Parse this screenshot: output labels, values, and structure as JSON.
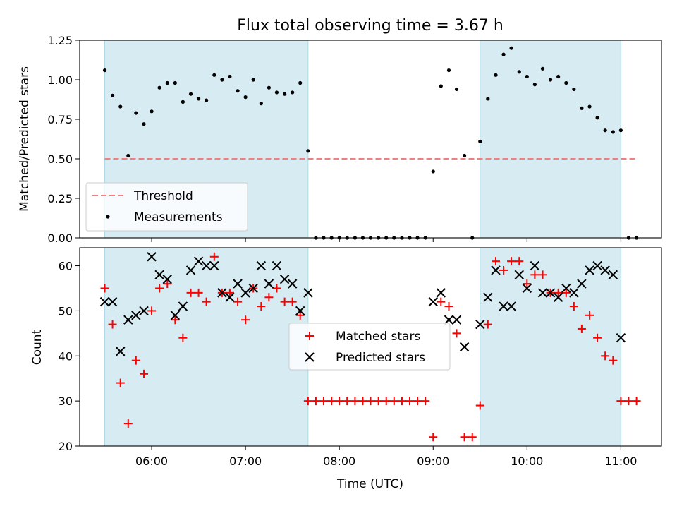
{
  "title": "Flux total observing time = 3.67 h",
  "chart_data": [
    {
      "type": "scatter",
      "panel": "top",
      "ylabel": "Matched/Predicted stars",
      "ylim": [
        0,
        1.25
      ],
      "yticks": [
        0.0,
        0.25,
        0.5,
        0.75,
        1.0,
        1.25
      ],
      "ytick_labels": [
        "0.00",
        "0.25",
        "0.50",
        "0.75",
        "1.00",
        "1.25"
      ],
      "xticks_hours": [
        6,
        7,
        8,
        9,
        10,
        11
      ],
      "shaded_spans_hours": [
        [
          5.5,
          7.667
        ],
        [
          9.5,
          11.0
        ]
      ],
      "shade_color": "#add8e6",
      "threshold": {
        "name": "Threshold",
        "value": 0.5,
        "x_range_hours": [
          5.5,
          11.17
        ],
        "color": "#f08080"
      },
      "legend": {
        "placement": "lower-left",
        "entries": [
          "Threshold",
          "Measurements"
        ]
      },
      "series": [
        {
          "name": "Measurements",
          "color": "#000000",
          "x": [
            5.5,
            5.583,
            5.667,
            5.75,
            5.833,
            5.917,
            6.0,
            6.083,
            6.167,
            6.25,
            6.333,
            6.417,
            6.5,
            6.583,
            6.667,
            6.75,
            6.833,
            6.917,
            7.0,
            7.083,
            7.167,
            7.25,
            7.333,
            7.417,
            7.5,
            7.583,
            7.667,
            7.75,
            7.833,
            7.917,
            8.0,
            8.083,
            8.167,
            8.25,
            8.333,
            8.417,
            8.5,
            8.583,
            8.667,
            8.75,
            8.833,
            8.917,
            9.0,
            9.083,
            9.167,
            9.25,
            9.333,
            9.417,
            9.5,
            9.583,
            9.667,
            9.75,
            9.833,
            9.917,
            10.0,
            10.083,
            10.167,
            10.25,
            10.333,
            10.417,
            10.5,
            10.583,
            10.667,
            10.75,
            10.833,
            10.917,
            11.0,
            11.083,
            11.167
          ],
          "y": [
            1.06,
            0.9,
            0.83,
            0.52,
            0.79,
            0.72,
            0.8,
            0.95,
            0.98,
            0.98,
            0.86,
            0.91,
            0.88,
            0.87,
            1.03,
            1.0,
            1.02,
            0.93,
            0.89,
            1.0,
            0.85,
            0.95,
            0.92,
            0.91,
            0.92,
            0.98,
            0.55,
            0.0,
            0.0,
            0.0,
            0.0,
            0.0,
            0.0,
            0.0,
            0.0,
            0.0,
            0.0,
            0.0,
            0.0,
            0.0,
            0.0,
            0.0,
            0.42,
            0.96,
            1.06,
            0.94,
            0.52,
            0.0,
            0.61,
            0.88,
            1.03,
            1.16,
            1.2,
            1.05,
            1.02,
            0.97,
            1.07,
            1.0,
            1.02,
            0.98,
            0.94,
            0.82,
            0.83,
            0.76,
            0.68,
            0.67,
            0.68,
            0.0,
            0.0
          ]
        }
      ]
    },
    {
      "type": "scatter",
      "panel": "bottom",
      "xlabel": "Time (UTC)",
      "ylabel": "Count",
      "ylim": [
        20,
        64
      ],
      "yticks": [
        20,
        30,
        40,
        50,
        60
      ],
      "ytick_labels": [
        "20",
        "30",
        "40",
        "50",
        "60"
      ],
      "xlim_hours": [
        5.233,
        11.433
      ],
      "xticks_hours": [
        6,
        7,
        8,
        9,
        10,
        11
      ],
      "xtick_labels": [
        "06:00",
        "07:00",
        "08:00",
        "09:00",
        "10:00",
        "11:00"
      ],
      "shaded_spans_hours": [
        [
          5.5,
          7.667
        ],
        [
          9.5,
          11.0
        ]
      ],
      "legend": {
        "placement": "center",
        "entries": [
          "Matched stars",
          "Predicted stars"
        ]
      },
      "series": [
        {
          "name": "Matched stars",
          "marker": "plus",
          "color": "#ff0000",
          "x": [
            5.5,
            5.583,
            5.667,
            5.75,
            5.833,
            5.917,
            6.0,
            6.083,
            6.167,
            6.25,
            6.333,
            6.417,
            6.5,
            6.583,
            6.667,
            6.75,
            6.833,
            6.917,
            7.0,
            7.083,
            7.167,
            7.25,
            7.333,
            7.417,
            7.5,
            7.583,
            7.667,
            7.75,
            7.833,
            7.917,
            8.0,
            8.083,
            8.167,
            8.25,
            8.333,
            8.417,
            8.5,
            8.583,
            8.667,
            8.75,
            8.833,
            8.917,
            9.0,
            9.083,
            9.167,
            9.25,
            9.333,
            9.417,
            9.5,
            9.583,
            9.667,
            9.75,
            9.833,
            9.917,
            10.0,
            10.083,
            10.167,
            10.25,
            10.333,
            10.417,
            10.5,
            10.583,
            10.667,
            10.75,
            10.833,
            10.917,
            11.0,
            11.083,
            11.167
          ],
          "y": [
            55,
            47,
            34,
            25,
            39,
            36,
            50,
            55,
            56,
            48,
            44,
            54,
            54,
            52,
            62,
            54,
            54,
            52,
            48,
            55,
            51,
            53,
            55,
            52,
            52,
            49,
            30,
            30,
            30,
            30,
            30,
            30,
            30,
            30,
            30,
            30,
            30,
            30,
            30,
            30,
            30,
            30,
            22,
            52,
            51,
            45,
            22,
            22,
            29,
            47,
            61,
            59,
            61,
            61,
            56,
            58,
            58,
            54,
            54,
            54,
            51,
            46,
            49,
            44,
            40,
            39,
            30,
            30,
            30
          ]
        },
        {
          "name": "Predicted stars",
          "marker": "x",
          "color": "#000000",
          "x": [
            5.5,
            5.583,
            5.667,
            5.75,
            5.833,
            5.917,
            6.0,
            6.083,
            6.167,
            6.25,
            6.333,
            6.417,
            6.5,
            6.583,
            6.667,
            6.75,
            6.833,
            6.917,
            7.0,
            7.083,
            7.167,
            7.25,
            7.333,
            7.417,
            7.5,
            7.583,
            7.667,
            9.0,
            9.083,
            9.167,
            9.25,
            9.333,
            9.5,
            9.583,
            9.667,
            9.75,
            9.833,
            9.917,
            10.0,
            10.083,
            10.167,
            10.25,
            10.333,
            10.417,
            10.5,
            10.583,
            10.667,
            10.75,
            10.833,
            10.917,
            11.0
          ],
          "y": [
            52,
            52,
            41,
            48,
            49,
            50,
            62,
            58,
            57,
            49,
            51,
            59,
            61,
            60,
            60,
            54,
            53,
            56,
            54,
            55,
            60,
            56,
            60,
            57,
            56,
            50,
            54,
            52,
            54,
            48,
            48,
            42,
            47,
            53,
            59,
            51,
            51,
            58,
            55,
            60,
            54,
            54,
            53,
            55,
            54,
            56,
            59,
            60,
            59,
            58,
            44
          ]
        }
      ]
    }
  ]
}
